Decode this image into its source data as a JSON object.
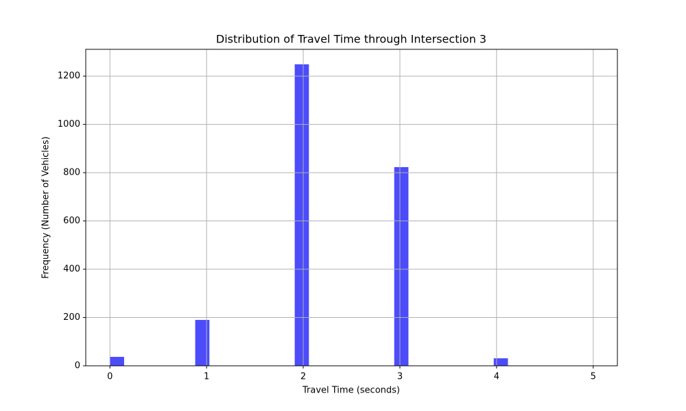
{
  "chart_data": {
    "type": "histogram",
    "title": "Distribution of Travel Time through Intersection 3",
    "x_label": "Travel Time (seconds)",
    "y_label": "Frequency (Number of Vehicles)",
    "bins": [
      0,
      0.1471,
      0.2941,
      0.4412,
      0.5882,
      0.7353,
      0.8824,
      1.0294,
      1.1765,
      1.3235,
      1.4706,
      1.6176,
      1.7647,
      1.9118,
      2.0588,
      2.2059,
      2.3529,
      2.5,
      2.6471,
      2.7941,
      2.9412,
      3.0882,
      3.2353,
      3.3824,
      3.5294,
      3.6765,
      3.8235,
      3.9706,
      4.1176,
      4.2647,
      4.4118,
      4.5588,
      4.7059,
      4.8529,
      5
    ],
    "counts": [
      37,
      0,
      0,
      0,
      0,
      0,
      190,
      0,
      0,
      0,
      0,
      0,
      0,
      1249,
      0,
      0,
      0,
      0,
      0,
      0,
      823,
      0,
      0,
      0,
      0,
      0,
      0,
      31,
      0,
      0,
      0,
      0,
      0,
      1
    ],
    "color": "#4c4cfb",
    "xlim": [
      -0.25,
      5.25
    ],
    "xticks": [
      0,
      1,
      2,
      3,
      4,
      5
    ],
    "ylim": [
      0,
      1311
    ],
    "yticks": [
      0,
      200,
      400,
      600,
      800,
      1000,
      1200
    ],
    "grid": true
  }
}
